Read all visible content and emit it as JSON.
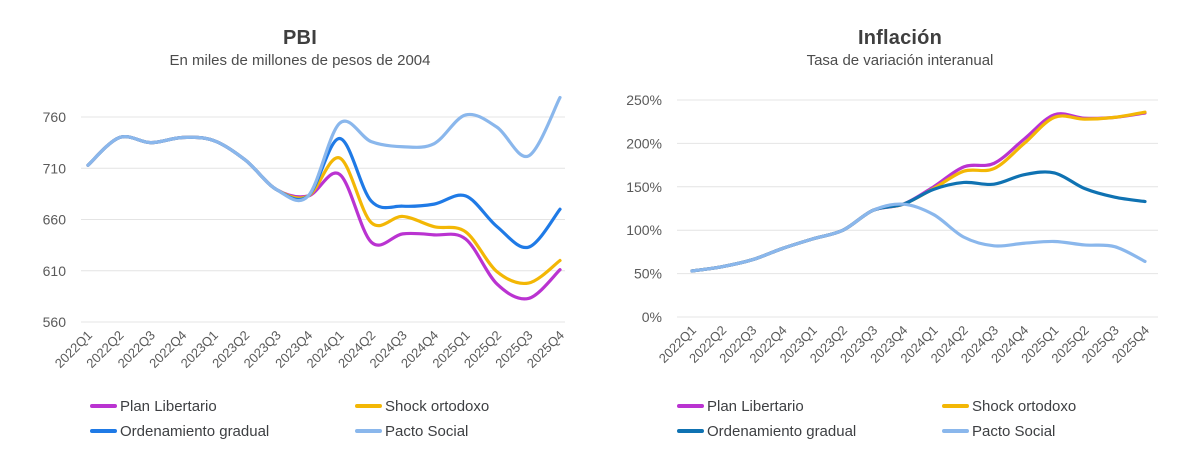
{
  "chart_data": [
    {
      "type": "line",
      "title": "PBI",
      "subtitle": "En miles de millones de pesos de 2004",
      "categories": [
        "2022Q1",
        "2022Q2",
        "2022Q3",
        "2022Q4",
        "2023Q1",
        "2023Q2",
        "2023Q3",
        "2023Q4",
        "2024Q1",
        "2024Q2",
        "2024Q3",
        "2024Q4",
        "2025Q1",
        "2025Q2",
        "2025Q3",
        "2025Q4"
      ],
      "y_ticks": [
        560,
        610,
        660,
        710,
        760
      ],
      "y_tick_suffix": "",
      "ylim": [
        560,
        785
      ],
      "grid": true,
      "legend_position": "bottom",
      "x_tick_rotation": -45,
      "series": [
        {
          "name": "Plan Libertario",
          "color": "#ba33d1",
          "values": [
            713,
            740,
            735,
            740,
            737,
            718,
            689,
            683,
            704,
            638,
            646,
            645,
            641,
            597,
            583,
            611
          ]
        },
        {
          "name": "Shock ortodoxo",
          "color": "#f3b705",
          "values": [
            713,
            740,
            735,
            740,
            737,
            718,
            689,
            683,
            720,
            657,
            663,
            653,
            648,
            609,
            598,
            620
          ]
        },
        {
          "name": "Ordenamiento gradual",
          "color": "#1f7ae6",
          "values": [
            713,
            740,
            735,
            740,
            737,
            718,
            689,
            683,
            739,
            678,
            673,
            675,
            683,
            653,
            633,
            670
          ]
        },
        {
          "name": "Pacto Social",
          "color": "#8ab7ec",
          "values": [
            713,
            740,
            735,
            740,
            737,
            718,
            689,
            683,
            754,
            736,
            731,
            734,
            762,
            750,
            722,
            779
          ]
        }
      ]
    },
    {
      "type": "line",
      "title": "Inflación",
      "subtitle": "Tasa de variación interanual",
      "categories": [
        "2022Q1",
        "2022Q2",
        "2022Q3",
        "2022Q4",
        "2023Q1",
        "2023Q2",
        "2023Q3",
        "2023Q4",
        "2024Q1",
        "2024Q2",
        "2024Q3",
        "2024Q4",
        "2025Q1",
        "2025Q2",
        "2025Q3",
        "2025Q4"
      ],
      "y_ticks": [
        0,
        50,
        100,
        150,
        200,
        250
      ],
      "y_tick_suffix": "%",
      "ylim": [
        0,
        252
      ],
      "grid": true,
      "legend_position": "bottom",
      "x_tick_rotation": -45,
      "series": [
        {
          "name": "Plan Libertario",
          "color": "#ba33d1",
          "values": [
            53,
            58,
            66,
            79,
            90,
            100,
            123,
            130,
            150,
            173,
            177,
            205,
            233,
            229,
            230,
            235
          ]
        },
        {
          "name": "Shock ortodoxo",
          "color": "#f3b705",
          "values": [
            53,
            58,
            66,
            79,
            90,
            100,
            123,
            130,
            148,
            168,
            171,
            200,
            230,
            228,
            230,
            236
          ]
        },
        {
          "name": "Ordenamiento gradual",
          "color": "#0f72b2",
          "values": [
            53,
            58,
            66,
            79,
            90,
            100,
            123,
            130,
            147,
            155,
            153,
            164,
            166,
            148,
            138,
            133
          ]
        },
        {
          "name": "Pacto Social",
          "color": "#8ab7ec",
          "values": [
            53,
            58,
            66,
            79,
            90,
            100,
            123,
            130,
            118,
            92,
            82,
            85,
            87,
            83,
            81,
            64
          ]
        }
      ]
    }
  ]
}
